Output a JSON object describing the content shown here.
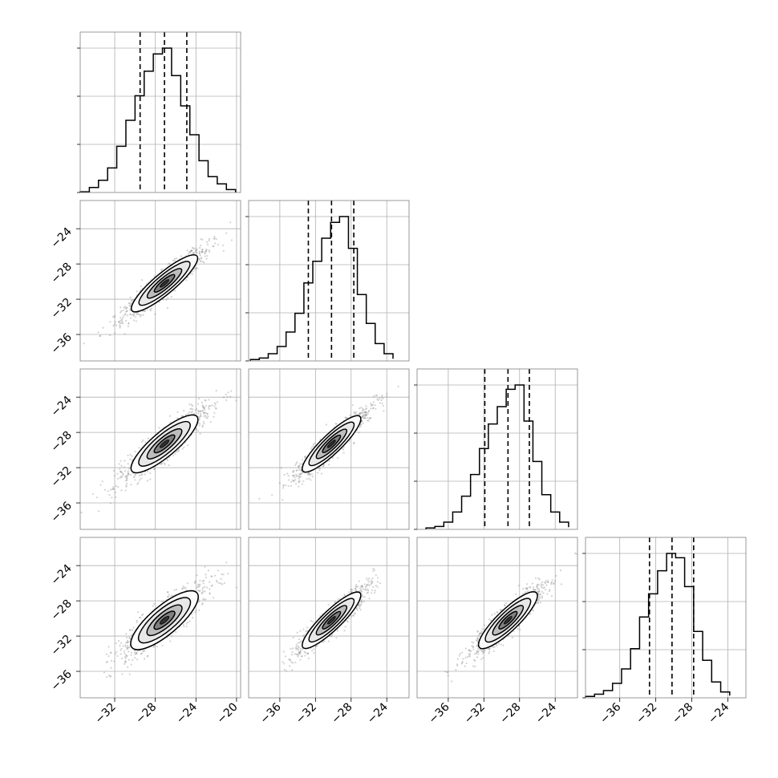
{
  "chart_data": {
    "type": "corner",
    "grid": true,
    "n_params": 4,
    "colors": {
      "line": "#000000",
      "grid": "#b0b0b0",
      "samples": "#808080",
      "frame": "#808080"
    },
    "quantiles": [
      0.16,
      0.5,
      0.84
    ],
    "params": [
      {
        "x_range": [
          -35.4,
          -19.6
        ],
        "y_range": [
          -39.0,
          -20.8
        ],
        "x_ticks": [
          -32,
          -28,
          -24,
          -20
        ],
        "x_tick_labels": [
          "−32",
          "−28",
          "−24",
          "−20"
        ],
        "quantile_lines": [
          -29.5,
          -27.1,
          -24.9
        ],
        "hist_bins": [
          -35.4,
          -34.5,
          -33.6,
          -32.7,
          -31.8,
          -30.9,
          -30.0,
          -29.1,
          -28.2,
          -27.3,
          -26.4,
          -25.5,
          -24.6,
          -23.7,
          -22.8,
          -21.9,
          -21.0,
          -20.1
        ],
        "hist_counts": [
          0.5,
          3.5,
          8.5,
          17,
          32,
          50,
          67,
          84,
          96,
          100,
          81,
          60,
          40,
          22,
          11,
          6,
          2
        ]
      },
      {
        "x_range": [
          -39.5,
          -21.5
        ],
        "y_range": [
          -39.0,
          -20.8
        ],
        "y_ticks": [
          -24,
          -28,
          -32,
          -36
        ],
        "y_tick_labels": [
          "−24",
          "−28",
          "−32",
          "−36"
        ],
        "x_ticks": [
          -36,
          -32,
          -28,
          -24
        ],
        "x_tick_labels": [
          "−36",
          "−32",
          "−28",
          "−24"
        ],
        "quantile_lines": [
          -32.8,
          -30.2,
          -27.7
        ],
        "hist_bins": [
          -39.3,
          -38.3,
          -37.3,
          -36.3,
          -35.3,
          -34.3,
          -33.3,
          -32.3,
          -31.3,
          -30.3,
          -29.3,
          -28.3,
          -27.3,
          -26.3,
          -25.3,
          -24.3,
          -23.3
        ],
        "hist_counts": [
          1,
          2,
          5,
          10,
          20,
          33,
          54,
          69,
          85,
          96,
          100,
          78,
          46,
          26,
          12,
          5,
          1.5
        ]
      },
      {
        "x_range": [
          -39.5,
          -21.5
        ],
        "y_range": [
          -39.0,
          -20.8
        ],
        "y_ticks": [
          -24,
          -28,
          -32,
          -36
        ],
        "y_tick_labels": [
          "−24",
          "−28",
          "−32",
          "−36"
        ],
        "x_ticks": [
          -36,
          -32,
          -28,
          -24
        ],
        "x_tick_labels": [
          "−36",
          "−32",
          "−28",
          "−24"
        ],
        "quantile_lines": [
          -31.9,
          -29.3,
          -26.9
        ],
        "hist_bins": [
          -38.5,
          -37.5,
          -36.5,
          -35.5,
          -34.5,
          -33.5,
          -32.5,
          -31.5,
          -30.5,
          -29.5,
          -28.5,
          -27.5,
          -26.5,
          -25.5,
          -24.5,
          -23.5,
          -22.5
        ],
        "hist_counts": [
          1,
          2,
          5,
          12,
          23,
          38,
          56,
          73,
          85,
          97,
          100,
          75,
          47,
          24,
          12,
          5,
          1.5
        ]
      },
      {
        "x_range": [
          -39.8,
          -22.0
        ],
        "y_range": [
          -39.0,
          -20.8
        ],
        "y_ticks": [
          -24,
          -28,
          -32,
          -36
        ],
        "y_tick_labels": [
          "−24",
          "−28",
          "−32",
          "−36"
        ],
        "x_ticks": [
          -36,
          -32,
          -28,
          -24
        ],
        "x_tick_labels": [
          "−36",
          "−32",
          "−28",
          "−24"
        ],
        "quantile_lines": [
          -32.7,
          -30.2,
          -27.8
        ],
        "hist_bins": [
          -39.8,
          -38.8,
          -37.8,
          -36.8,
          -35.8,
          -34.8,
          -33.8,
          -32.8,
          -31.8,
          -30.8,
          -29.8,
          -28.8,
          -27.8,
          -26.8,
          -25.8,
          -24.8,
          -23.8
        ],
        "hist_counts": [
          1,
          2.5,
          5,
          10,
          20,
          34,
          56,
          72,
          88,
          100,
          97,
          77,
          46,
          26,
          11,
          4,
          1.5
        ]
      }
    ],
    "pairs": [
      {
        "x_param": 0,
        "y_param": 1,
        "center": [
          -27.1,
          -30.2
        ],
        "slope": 0.97,
        "major_sd": 3.0,
        "minor_sd": 0.55
      },
      {
        "x_param": 0,
        "y_param": 2,
        "center": [
          -27.1,
          -29.3
        ],
        "slope": 0.97,
        "major_sd": 3.0,
        "minor_sd": 0.65
      },
      {
        "x_param": 1,
        "y_param": 2,
        "center": [
          -30.2,
          -29.3
        ],
        "slope": 0.97,
        "major_sd": 3.0,
        "minor_sd": 0.55
      },
      {
        "x_param": 0,
        "y_param": 3,
        "center": [
          -27.1,
          -30.2
        ],
        "slope": 0.97,
        "major_sd": 3.0,
        "minor_sd": 0.75
      },
      {
        "x_param": 1,
        "y_param": 3,
        "center": [
          -30.2,
          -30.2
        ],
        "slope": 0.97,
        "major_sd": 3.0,
        "minor_sd": 0.55
      },
      {
        "x_param": 2,
        "y_param": 3,
        "center": [
          -29.3,
          -30.2
        ],
        "slope": 0.97,
        "major_sd": 3.0,
        "minor_sd": 0.6
      }
    ]
  }
}
